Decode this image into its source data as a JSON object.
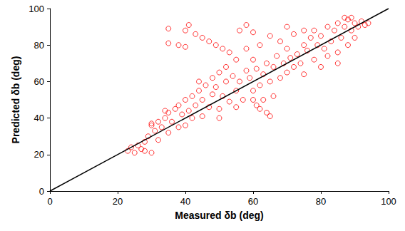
{
  "chart_data": {
    "type": "scatter",
    "x_label": "Measured δb (deg)",
    "y_label": "Predicted δb (deg)",
    "xlim": [
      0,
      100
    ],
    "ylim": [
      0,
      100
    ],
    "xticks": [
      0,
      20,
      40,
      60,
      80,
      100
    ],
    "yticks": [
      0,
      20,
      40,
      60,
      80,
      100
    ],
    "grid": false,
    "series": [
      {
        "type": "scatter",
        "color": "#ff0000",
        "marker": "circle-open",
        "x": [
          23,
          24,
          25,
          26,
          27,
          28,
          28,
          29,
          30,
          30,
          31,
          32,
          32,
          33,
          34,
          35,
          35,
          36,
          37,
          38,
          38,
          39,
          40,
          40,
          41,
          42,
          42,
          43,
          44,
          45,
          45,
          46,
          47,
          48,
          48,
          49,
          50,
          50,
          51,
          52,
          52,
          53,
          54,
          55,
          55,
          56,
          57,
          58,
          58,
          59,
          60,
          60,
          61,
          62,
          62,
          63,
          64,
          65,
          65,
          66,
          67,
          68,
          68,
          69,
          70,
          70,
          71,
          72,
          72,
          73,
          74,
          75,
          75,
          76,
          77,
          78,
          78,
          79,
          80,
          80,
          81,
          82,
          82,
          83,
          84,
          85,
          85,
          86,
          87,
          88,
          88,
          89,
          90,
          90,
          91,
          92,
          93,
          94,
          35,
          35,
          38,
          40,
          40,
          41,
          43,
          45,
          47,
          49,
          51,
          53,
          56,
          58,
          60,
          60,
          61,
          62,
          64,
          65,
          30,
          34,
          44,
          50,
          55,
          70,
          75,
          66,
          63,
          85,
          87,
          89
        ],
        "values": [
          22,
          24,
          21,
          25,
          23,
          27,
          22,
          30,
          21,
          36,
          33,
          28,
          38,
          35,
          40,
          32,
          43,
          38,
          45,
          35,
          47,
          42,
          36,
          50,
          44,
          40,
          52,
          47,
          55,
          41,
          50,
          58,
          46,
          53,
          62,
          57,
          45,
          65,
          52,
          60,
          68,
          49,
          63,
          55,
          72,
          60,
          50,
          66,
          78,
          62,
          55,
          72,
          67,
          58,
          80,
          64,
          70,
          60,
          85,
          68,
          74,
          62,
          82,
          70,
          65,
          78,
          73,
          68,
          86,
          75,
          70,
          80,
          64,
          77,
          84,
          72,
          88,
          80,
          68,
          85,
          78,
          90,
          74,
          82,
          88,
          76,
          92,
          84,
          90,
          80,
          94,
          88,
          92,
          84,
          90,
          93,
          91,
          92,
          89,
          81,
          80,
          79,
          88,
          91,
          86,
          84,
          82,
          80,
          78,
          76,
          88,
          91,
          87,
          50,
          47,
          45,
          43,
          41,
          37,
          44,
          60,
          40,
          46,
          90,
          88,
          52,
          50,
          70,
          95,
          95
        ]
      },
      {
        "type": "line",
        "color": "#000000",
        "line_style": "solid",
        "x": [
          0,
          100
        ],
        "values": [
          0,
          100
        ]
      }
    ]
  }
}
